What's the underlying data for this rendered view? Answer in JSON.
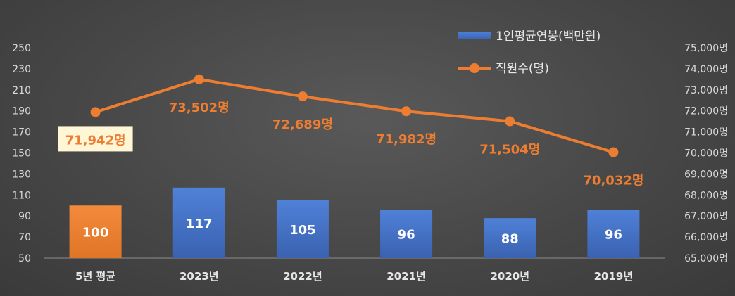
{
  "chart_data": {
    "type": "bar",
    "categories": [
      "5년 평균",
      "2023년",
      "2022년",
      "2021년",
      "2020년",
      "2019년"
    ],
    "series": [
      {
        "name": "1인평균연봉(백만원)",
        "type": "bar",
        "axis": "left",
        "values": [
          100,
          117,
          105,
          96,
          88,
          96
        ],
        "labels": [
          "100",
          "117",
          "105",
          "96",
          "88",
          "96"
        ],
        "color": "#4472c4",
        "highlight_color": "#ed7d31",
        "highlight_index": 0
      },
      {
        "name": "직원수(명)",
        "type": "line",
        "axis": "right",
        "values": [
          71942,
          73502,
          72689,
          71982,
          71504,
          70032
        ],
        "labels": [
          "71,942명",
          "73,502명",
          "72,689명",
          "71,982명",
          "71,504명",
          "70,032명"
        ],
        "color": "#ed7d31"
      }
    ],
    "y_left": {
      "range": [
        50,
        250
      ],
      "ticks": [
        "50",
        "70",
        "90",
        "110",
        "130",
        "150",
        "170",
        "190",
        "210",
        "230",
        "250"
      ]
    },
    "y_right": {
      "range": [
        65000,
        75000
      ],
      "ticks": [
        "65,000명",
        "66,000명",
        "67,000명",
        "68,000명",
        "69,000명",
        "70,000명",
        "71,000명",
        "72,000명",
        "73,000명",
        "74,000명",
        "75,000명"
      ]
    },
    "grid": false,
    "legend": "top-right"
  }
}
